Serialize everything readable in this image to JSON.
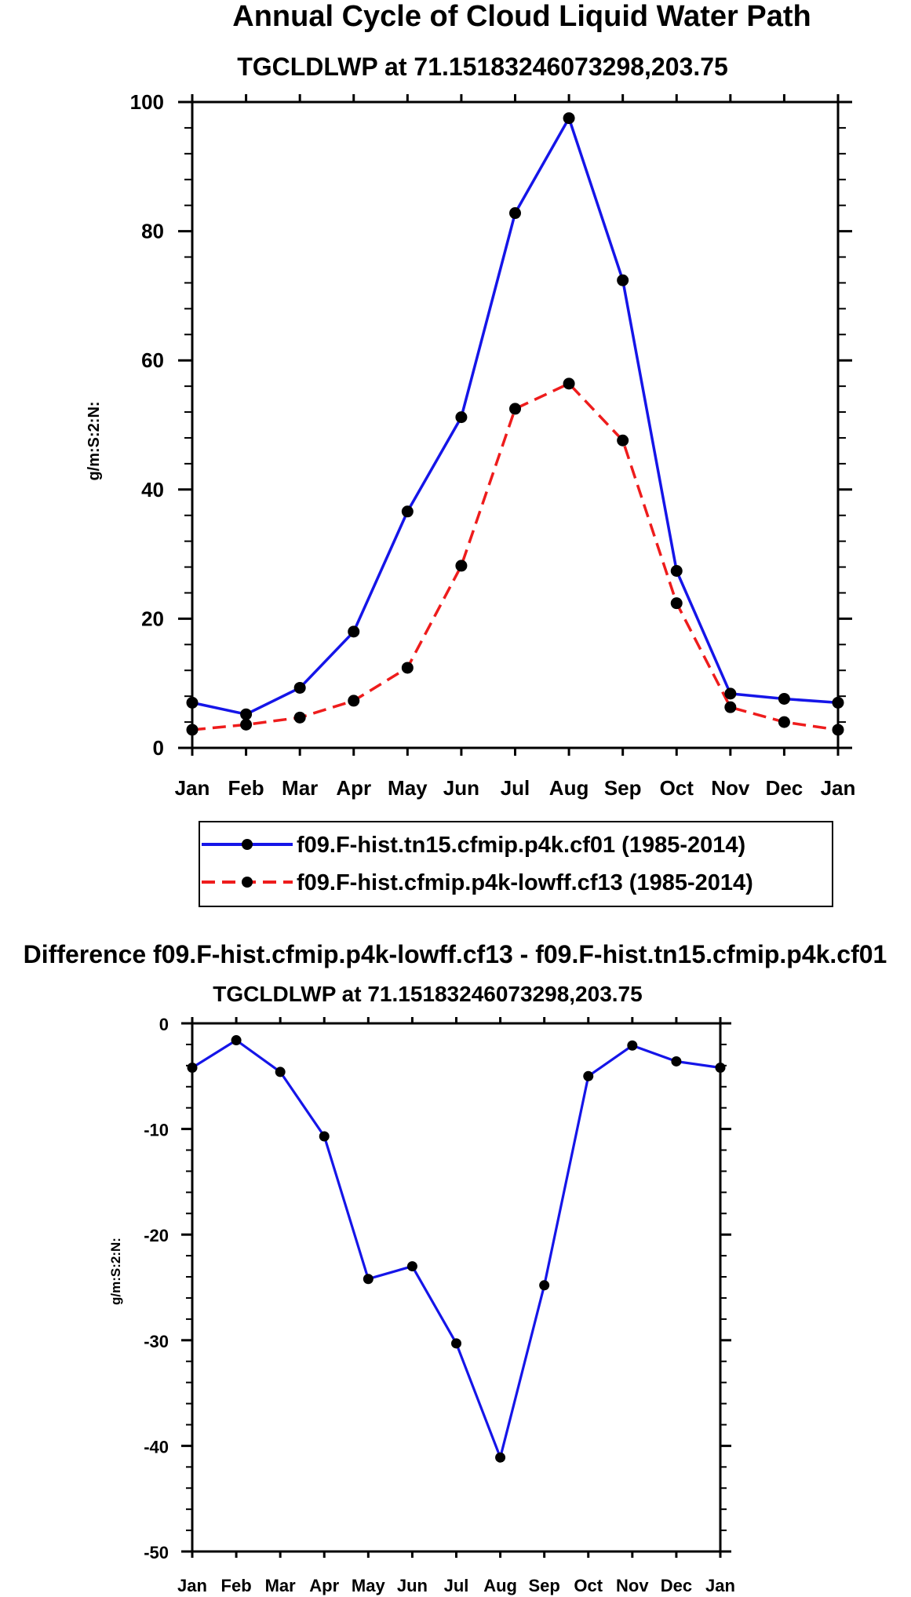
{
  "chart_data": [
    {
      "type": "line",
      "title": "Annual Cycle of Cloud Liquid Water Path",
      "subtitle": "TGCLDLWP at 71.15183246073298,203.75",
      "ylabel": "g/m:S:2:N:",
      "xlabel": "",
      "categories": [
        "Jan",
        "Feb",
        "Mar",
        "Apr",
        "May",
        "Jun",
        "Jul",
        "Aug",
        "Sep",
        "Oct",
        "Nov",
        "Dec",
        "Jan"
      ],
      "ylim": [
        0,
        100
      ],
      "yticks": [
        0,
        20,
        40,
        60,
        80,
        100
      ],
      "ytick_labels": [
        "0",
        "20",
        "40",
        "60",
        "80",
        "100"
      ],
      "series": [
        {
          "name": "f09.F-hist.tn15.cfmip.p4k.cf01 (1985-2014)",
          "color": "#1515e8",
          "dash": "solid",
          "values": [
            7.0,
            5.2,
            9.3,
            18.0,
            36.6,
            51.2,
            82.8,
            97.5,
            72.4,
            27.4,
            8.4,
            7.6,
            7.0
          ]
        },
        {
          "name": "f09.F-hist.cfmip.p4k-lowff.cf13 (1985-2014)",
          "color": "#ee1c1c",
          "dash": "dashed",
          "values": [
            2.8,
            3.6,
            4.7,
            7.3,
            12.4,
            28.2,
            52.5,
            56.4,
            47.6,
            22.4,
            6.3,
            4.0,
            2.8
          ]
        }
      ]
    },
    {
      "type": "line",
      "title": "Difference f09.F-hist.cfmip.p4k-lowff.cf13 - f09.F-hist.tn15.cfmip.p4k.cf01",
      "subtitle": "TGCLDLWP at 71.15183246073298,203.75",
      "ylabel": "g/m:S:2:N:",
      "xlabel": "",
      "categories": [
        "Jan",
        "Feb",
        "Mar",
        "Apr",
        "May",
        "Jun",
        "Jul",
        "Aug",
        "Sep",
        "Oct",
        "Nov",
        "Dec",
        "Jan"
      ],
      "ylim": [
        -50,
        0
      ],
      "yticks": [
        -50,
        -40,
        -30,
        -20,
        -10,
        0
      ],
      "ytick_labels": [
        "-50",
        "-40",
        "-30",
        "-20",
        "-10",
        "0"
      ],
      "series": [
        {
          "name": "Difference",
          "color": "#1515e8",
          "dash": "solid",
          "values": [
            -4.2,
            -1.6,
            -4.6,
            -10.7,
            -24.2,
            -23.0,
            -30.3,
            -41.1,
            -24.8,
            -5.0,
            -2.1,
            -3.6,
            -4.2
          ]
        }
      ]
    }
  ]
}
